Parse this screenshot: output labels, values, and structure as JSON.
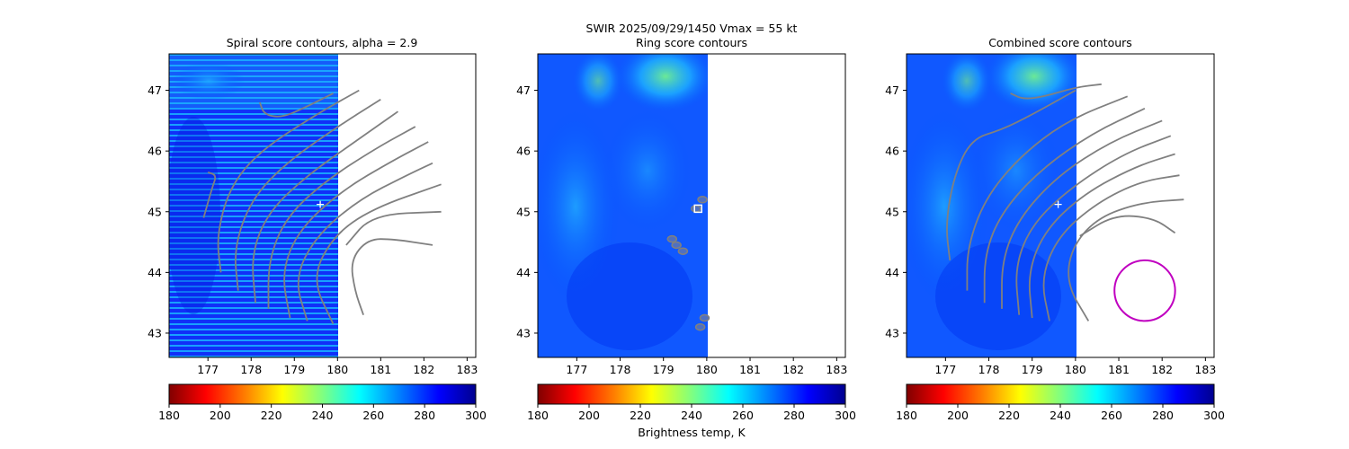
{
  "figure": {
    "suptitle_line1": "SWIR  2025/09/29/1450    Vmax = 55 kt"
  },
  "colors": {
    "contour": "#808080",
    "circle": "#c000c0",
    "marker": "#ffffff",
    "colormap": [
      "#800000",
      "#ff0000",
      "#ff8000",
      "#ffff00",
      "#80ff80",
      "#00ffff",
      "#0080ff",
      "#0000ff",
      "#00008f"
    ]
  },
  "colorbar": {
    "vmin": 180,
    "vmax": 300,
    "ticks": [
      "180",
      "200",
      "220",
      "240",
      "260",
      "280",
      "300"
    ],
    "label": "Brightness temp, K"
  },
  "chart_data": [
    {
      "type": "heatmap",
      "title": "Spiral score contours, alpha =  2.9",
      "xlim": [
        176.1,
        183.2
      ],
      "ylim": [
        42.6,
        47.6
      ],
      "xticks": [
        "177",
        "178",
        "179",
        "180",
        "181",
        "182",
        "183"
      ],
      "yticks": [
        "43",
        "44",
        "45",
        "46",
        "47"
      ],
      "image_extent_lon": [
        176.1,
        180.0
      ],
      "image_style": "striped",
      "center_marker": {
        "lon": 179.6,
        "lat": 45.12,
        "symbol": "+"
      },
      "contours": [
        [
          [
            176.9,
            44.9
          ],
          [
            177.1,
            45.4
          ],
          [
            177.2,
            45.6
          ],
          [
            177.0,
            45.65
          ]
        ],
        [
          [
            177.3,
            44.0
          ],
          [
            177.2,
            44.6
          ],
          [
            177.5,
            45.4
          ],
          [
            178.2,
            46.0
          ],
          [
            179.5,
            46.6
          ],
          [
            180.5,
            47.0
          ]
        ],
        [
          [
            177.7,
            43.7
          ],
          [
            177.6,
            44.4
          ],
          [
            178.0,
            45.2
          ],
          [
            178.8,
            45.8
          ],
          [
            180.0,
            46.4
          ],
          [
            181.0,
            46.85
          ]
        ],
        [
          [
            178.1,
            43.5
          ],
          [
            178.0,
            44.3
          ],
          [
            178.4,
            45.0
          ],
          [
            179.3,
            45.6
          ],
          [
            180.5,
            46.2
          ],
          [
            181.4,
            46.65
          ]
        ],
        [
          [
            178.4,
            43.4
          ],
          [
            178.4,
            44.2
          ],
          [
            178.8,
            44.9
          ],
          [
            179.7,
            45.5
          ],
          [
            180.9,
            46.05
          ],
          [
            181.8,
            46.4
          ]
        ],
        [
          [
            178.9,
            43.25
          ],
          [
            178.7,
            44.0
          ],
          [
            179.1,
            44.7
          ],
          [
            180.1,
            45.35
          ],
          [
            181.3,
            45.85
          ],
          [
            182.1,
            46.15
          ]
        ],
        [
          [
            179.3,
            43.2
          ],
          [
            179.0,
            43.9
          ],
          [
            179.5,
            44.6
          ],
          [
            180.5,
            45.2
          ],
          [
            181.6,
            45.6
          ],
          [
            182.2,
            45.8
          ]
        ],
        [
          [
            179.9,
            43.15
          ],
          [
            179.4,
            43.9
          ],
          [
            179.9,
            44.6
          ],
          [
            180.8,
            45.05
          ],
          [
            182.4,
            45.45
          ]
        ],
        [
          [
            180.2,
            44.45
          ],
          [
            180.8,
            44.95
          ],
          [
            182.4,
            45.0
          ]
        ],
        [
          [
            180.6,
            43.3
          ],
          [
            180.4,
            43.7
          ],
          [
            180.3,
            44.2
          ],
          [
            180.7,
            44.55
          ],
          [
            181.3,
            44.55
          ],
          [
            182.2,
            44.45
          ]
        ],
        [
          [
            178.2,
            46.8
          ],
          [
            178.3,
            46.6
          ],
          [
            178.7,
            46.55
          ],
          [
            179.2,
            46.7
          ],
          [
            179.9,
            46.95
          ]
        ]
      ]
    },
    {
      "type": "heatmap",
      "title": "Ring score contours",
      "xlim": [
        176.1,
        183.2
      ],
      "ylim": [
        42.6,
        47.6
      ],
      "xticks": [
        "177",
        "178",
        "179",
        "180",
        "181",
        "182",
        "183"
      ],
      "yticks": [
        "43",
        "44",
        "45",
        "46",
        "47"
      ],
      "image_extent_lon": [
        176.1,
        180.0
      ],
      "image_style": "smooth",
      "center_marker": {
        "lon": 179.8,
        "lat": 45.05,
        "symbol": "square"
      },
      "blobs": [
        {
          "lon": 179.9,
          "lat": 45.2
        },
        {
          "lon": 179.75,
          "lat": 45.05
        },
        {
          "lon": 179.3,
          "lat": 44.45
        },
        {
          "lon": 179.45,
          "lat": 44.35
        },
        {
          "lon": 179.2,
          "lat": 44.55
        },
        {
          "lon": 179.85,
          "lat": 43.1
        },
        {
          "lon": 179.95,
          "lat": 43.25
        }
      ]
    },
    {
      "type": "heatmap",
      "title": "Combined score contours",
      "xlim": [
        176.1,
        183.2
      ],
      "ylim": [
        42.6,
        47.6
      ],
      "xticks": [
        "177",
        "178",
        "179",
        "180",
        "181",
        "182",
        "183"
      ],
      "yticks": [
        "43",
        "44",
        "45",
        "46",
        "47"
      ],
      "image_extent_lon": [
        176.1,
        180.0
      ],
      "image_style": "smooth",
      "center_marker": {
        "lon": 179.6,
        "lat": 45.12,
        "symbol": "+"
      },
      "circle": {
        "lon": 181.6,
        "lat": 43.7,
        "radius_lon": 0.7
      },
      "contours": [
        [
          [
            177.1,
            44.2
          ],
          [
            177.0,
            44.8
          ],
          [
            177.2,
            45.6
          ],
          [
            177.6,
            46.2
          ],
          [
            178.3,
            46.35
          ],
          [
            179.0,
            46.6
          ],
          [
            180.0,
            47.0
          ]
        ],
        [
          [
            177.5,
            43.7
          ],
          [
            177.5,
            44.4
          ],
          [
            177.9,
            45.2
          ],
          [
            178.7,
            45.9
          ],
          [
            179.8,
            46.5
          ],
          [
            181.2,
            46.9
          ]
        ],
        [
          [
            177.9,
            43.5
          ],
          [
            177.9,
            44.3
          ],
          [
            178.3,
            45.0
          ],
          [
            179.2,
            45.7
          ],
          [
            180.4,
            46.3
          ],
          [
            181.6,
            46.7
          ]
        ],
        [
          [
            178.3,
            43.4
          ],
          [
            178.3,
            44.2
          ],
          [
            178.7,
            44.9
          ],
          [
            179.6,
            45.6
          ],
          [
            180.8,
            46.15
          ],
          [
            182.0,
            46.5
          ]
        ],
        [
          [
            178.7,
            43.3
          ],
          [
            178.6,
            44.1
          ],
          [
            179.0,
            44.8
          ],
          [
            179.9,
            45.4
          ],
          [
            181.1,
            45.95
          ],
          [
            182.2,
            46.25
          ]
        ],
        [
          [
            179.0,
            43.25
          ],
          [
            178.9,
            44.0
          ],
          [
            179.3,
            44.7
          ],
          [
            180.2,
            45.3
          ],
          [
            181.4,
            45.75
          ],
          [
            182.3,
            45.95
          ]
        ],
        [
          [
            179.4,
            43.2
          ],
          [
            179.2,
            43.9
          ],
          [
            179.6,
            44.6
          ],
          [
            180.5,
            45.15
          ],
          [
            181.5,
            45.5
          ],
          [
            182.4,
            45.6
          ]
        ],
        [
          [
            180.3,
            43.2
          ],
          [
            179.8,
            43.8
          ],
          [
            179.9,
            44.4
          ],
          [
            180.5,
            44.9
          ],
          [
            181.5,
            45.15
          ],
          [
            182.5,
            45.2
          ]
        ],
        [
          [
            180.1,
            44.6
          ],
          [
            180.9,
            44.95
          ],
          [
            181.8,
            44.9
          ],
          [
            182.3,
            44.65
          ]
        ],
        [
          [
            178.5,
            46.95
          ],
          [
            178.8,
            46.85
          ],
          [
            179.3,
            46.9
          ],
          [
            180.0,
            47.05
          ],
          [
            180.6,
            47.1
          ]
        ]
      ]
    }
  ]
}
